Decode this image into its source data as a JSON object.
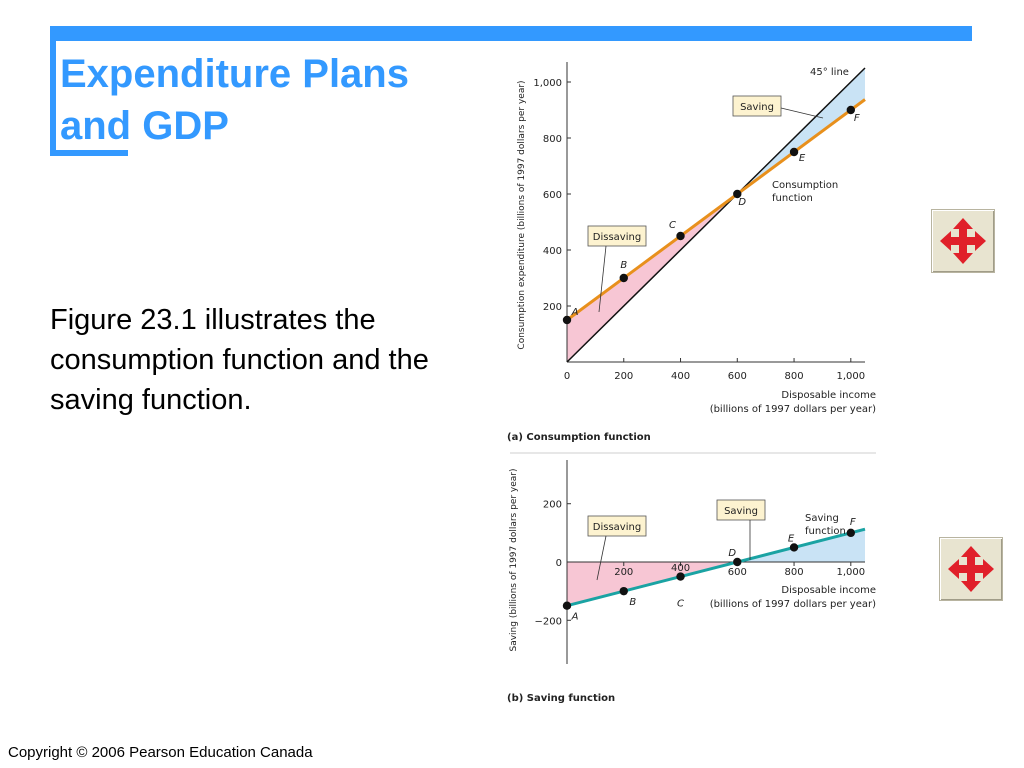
{
  "slide": {
    "title_line1": "Expenditure Plans",
    "title_line2": "and GDP",
    "body": "Figure 23.1 illustrates the consumption function and the saving function.",
    "copyright": "Copyright © 2006 Pearson Education Canada"
  },
  "nav": {
    "icon": "four-way-arrows-icon"
  },
  "colors": {
    "accent": "#3399ff",
    "orange_line": "#e8901c",
    "teal_line": "#1aa3a3",
    "dissaving_fill": "#f7c6d4",
    "saving_fill": "#c9e3f5",
    "callout_fill": "#fdf3d0"
  },
  "chart_data": [
    {
      "type": "line",
      "caption": "(a) Consumption function",
      "xlabel_line1": "Disposable income",
      "xlabel_line2": "(billions of 1997 dollars per year)",
      "ylabel": "Consumption expenditure (billions of 1997 dollars per year)",
      "xlim": [
        0,
        1050
      ],
      "ylim": [
        0,
        1050
      ],
      "x_ticks": [
        "0",
        "200",
        "400",
        "600",
        "800",
        "1,000"
      ],
      "x_tick_values": [
        0,
        200,
        400,
        600,
        800,
        1000
      ],
      "y_ticks": [
        "200",
        "400",
        "600",
        "800",
        "1,000"
      ],
      "y_tick_values": [
        200,
        400,
        600,
        800,
        1000
      ],
      "series": [
        {
          "name": "45° line",
          "x": [
            0,
            1050
          ],
          "y": [
            0,
            1050
          ]
        },
        {
          "name": "Consumption function",
          "x": [
            0,
            1050
          ],
          "y": [
            150,
            937.5
          ]
        }
      ],
      "points": [
        {
          "label": "A",
          "x": 0,
          "y": 150
        },
        {
          "label": "B",
          "x": 200,
          "y": 300
        },
        {
          "label": "C",
          "x": 400,
          "y": 450
        },
        {
          "label": "D",
          "x": 600,
          "y": 600
        },
        {
          "label": "E",
          "x": 800,
          "y": 750
        },
        {
          "label": "F",
          "x": 1000,
          "y": 900
        }
      ],
      "annotations": {
        "forty_five": "45° line",
        "saving": "Saving",
        "dissaving": "Dissaving",
        "consumption_line1": "Consumption",
        "consumption_line2": "function"
      }
    },
    {
      "type": "line",
      "caption": "(b) Saving function",
      "xlabel_line1": "Disposable income",
      "xlabel_line2": "(billions of 1997 dollars per year)",
      "ylabel": "Saving (billions of 1997 dollars per year)",
      "xlim": [
        0,
        1050
      ],
      "ylim": [
        -350,
        350
      ],
      "x_ticks": [
        "200",
        "400",
        "600",
        "800",
        "1,000"
      ],
      "x_tick_values": [
        200,
        400,
        600,
        800,
        1000
      ],
      "y_ticks": [
        "200",
        "0",
        "−200"
      ],
      "y_tick_values": [
        200,
        0,
        -200
      ],
      "series": [
        {
          "name": "Saving function",
          "x": [
            0,
            1050
          ],
          "y": [
            -150,
            112.5
          ]
        }
      ],
      "points": [
        {
          "label": "A",
          "x": 0,
          "y": -150
        },
        {
          "label": "B",
          "x": 200,
          "y": -100
        },
        {
          "label": "C",
          "x": 400,
          "y": -50
        },
        {
          "label": "D",
          "x": 600,
          "y": 0
        },
        {
          "label": "E",
          "x": 800,
          "y": 50
        },
        {
          "label": "F",
          "x": 1000,
          "y": 100
        }
      ],
      "annotations": {
        "saving": "Saving",
        "dissaving": "Dissaving",
        "saving_fn_line1": "Saving",
        "saving_fn_line2": "function"
      }
    }
  ]
}
